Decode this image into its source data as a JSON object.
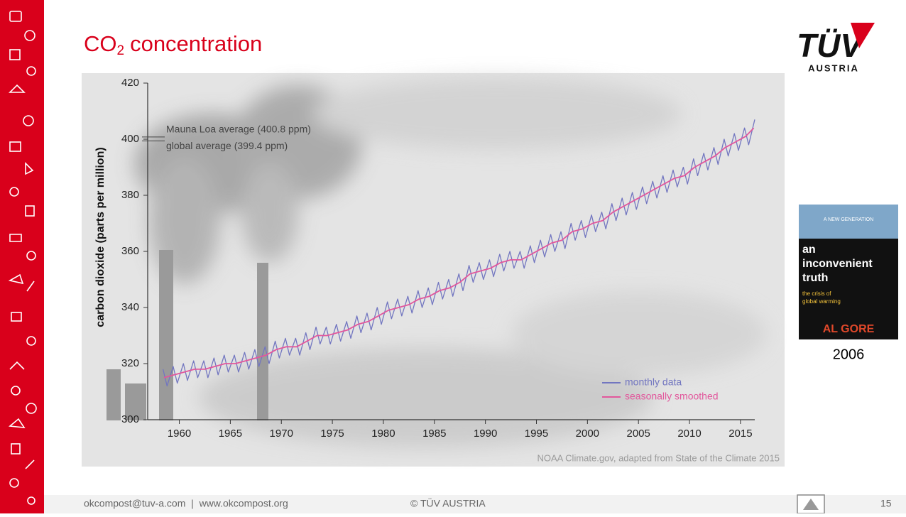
{
  "slide": {
    "title": {
      "main": "CO",
      "sub": "2",
      "rest": "concentration"
    },
    "logo": {
      "brand": "TÜV",
      "country": "AUSTRIA"
    },
    "book": {
      "tagline": "A NEW GENERATION",
      "title": [
        "an",
        "inconvenient",
        "truth"
      ],
      "subtitle": [
        "the crisis of",
        "global warming"
      ],
      "author": "AL GORE",
      "year": "2006"
    },
    "footer": {
      "contact": "okcompost@tuv-a.com  |  www.okcompost.org",
      "copyright": "© TÜV AUSTRIA",
      "page": "15"
    }
  },
  "chart_data": {
    "type": "line",
    "y_label": "carbon dioxide (parts per million)",
    "source": "NOAA Climate.gov, adapted from State of the Climate 2015",
    "annotations": [
      {
        "text": "Mauna Loa average (400.8 ppm)",
        "value": 400.8
      },
      {
        "text": "global average (399.4 ppm)",
        "value": 399.4
      }
    ],
    "xlim": [
      1956.9,
      2016.4
    ],
    "ylim": [
      300,
      420
    ],
    "xticks": [
      1960,
      1965,
      1970,
      1975,
      1980,
      1985,
      1990,
      1995,
      2000,
      2005,
      2010,
      2015
    ],
    "yticks": [
      300,
      320,
      340,
      360,
      380,
      400,
      420
    ],
    "grid": false,
    "legend": "lower right",
    "series": [
      {
        "name": "monthly data",
        "color": "#7276c0",
        "x": [
          1958.4,
          1958.8,
          1959.4,
          1959.8,
          1960.4,
          1960.8,
          1961.4,
          1961.8,
          1962.4,
          1962.8,
          1963.4,
          1963.8,
          1964.4,
          1964.8,
          1965.4,
          1965.8,
          1966.4,
          1966.8,
          1967.4,
          1967.8,
          1968.4,
          1968.8,
          1969.4,
          1969.8,
          1970.4,
          1970.8,
          1971.4,
          1971.8,
          1972.4,
          1972.8,
          1973.4,
          1973.8,
          1974.4,
          1974.8,
          1975.4,
          1975.8,
          1976.4,
          1976.8,
          1977.4,
          1977.8,
          1978.4,
          1978.8,
          1979.4,
          1979.8,
          1980.4,
          1980.8,
          1981.4,
          1981.8,
          1982.4,
          1982.8,
          1983.4,
          1983.8,
          1984.4,
          1984.8,
          1985.4,
          1985.8,
          1986.4,
          1986.8,
          1987.4,
          1987.8,
          1988.4,
          1988.8,
          1989.4,
          1989.8,
          1990.4,
          1990.8,
          1991.4,
          1991.8,
          1992.4,
          1992.8,
          1993.4,
          1993.8,
          1994.4,
          1994.8,
          1995.4,
          1995.8,
          1996.4,
          1996.8,
          1997.4,
          1997.8,
          1998.4,
          1998.8,
          1999.4,
          1999.8,
          2000.4,
          2000.8,
          2001.4,
          2001.8,
          2002.4,
          2002.8,
          2003.4,
          2003.8,
          2004.4,
          2004.8,
          2005.4,
          2005.8,
          2006.4,
          2006.8,
          2007.4,
          2007.8,
          2008.4,
          2008.8,
          2009.4,
          2009.8,
          2010.4,
          2010.8,
          2011.4,
          2011.8,
          2012.4,
          2012.8,
          2013.4,
          2013.8,
          2014.4,
          2014.8,
          2015.4,
          2015.8,
          2016.4
        ],
        "values": [
          318,
          312,
          319,
          313,
          320,
          314,
          321,
          315,
          321,
          315,
          322,
          316,
          323,
          317,
          323,
          317,
          324,
          318,
          325,
          319,
          326,
          320,
          328,
          322,
          329,
          323,
          329,
          323,
          331,
          325,
          333,
          327,
          333,
          327,
          334,
          328,
          335,
          329,
          337,
          331,
          338,
          332,
          340,
          334,
          342,
          336,
          343,
          337,
          344,
          338,
          346,
          340,
          347,
          341,
          349,
          343,
          350,
          344,
          352,
          346,
          355,
          349,
          356,
          350,
          357,
          351,
          359,
          353,
          360,
          354,
          360,
          354,
          362,
          356,
          364,
          358,
          366,
          360,
          367,
          361,
          370,
          364,
          371,
          365,
          373,
          367,
          374,
          368,
          377,
          371,
          379,
          373,
          381,
          375,
          383,
          377,
          385,
          379,
          387,
          381,
          389,
          383,
          390,
          384,
          393,
          387,
          395,
          389,
          397,
          391,
          400,
          394,
          402,
          396,
          404,
          398,
          407
        ]
      },
      {
        "name": "seasonally smoothed",
        "color": "#e2579c",
        "x": [
          1958.5,
          1959.5,
          1960.5,
          1961.5,
          1962.5,
          1963.5,
          1964.5,
          1965.5,
          1966.5,
          1967.5,
          1968.5,
          1969.5,
          1970.5,
          1971.5,
          1972.5,
          1973.5,
          1974.5,
          1975.5,
          1976.5,
          1977.5,
          1978.5,
          1979.5,
          1980.5,
          1981.5,
          1982.5,
          1983.5,
          1984.5,
          1985.5,
          1986.5,
          1987.5,
          1988.5,
          1989.5,
          1990.5,
          1991.5,
          1992.5,
          1993.5,
          1994.5,
          1995.5,
          1996.5,
          1997.5,
          1998.5,
          1999.5,
          2000.5,
          2001.5,
          2002.5,
          2003.5,
          2004.5,
          2005.5,
          2006.5,
          2007.5,
          2008.5,
          2009.5,
          2010.5,
          2011.5,
          2012.5,
          2013.5,
          2014.5,
          2015.5,
          2016.3
        ],
        "values": [
          315,
          316,
          317,
          318,
          318,
          319,
          320,
          320,
          321,
          322,
          323,
          325,
          326,
          326,
          328,
          330,
          330,
          331,
          332,
          334,
          335,
          337,
          339,
          340,
          341,
          343,
          344,
          346,
          347,
          349,
          352,
          353,
          354,
          356,
          357,
          357,
          359,
          361,
          363,
          364,
          367,
          368,
          370,
          371,
          374,
          376,
          378,
          380,
          382,
          384,
          386,
          387,
          390,
          392,
          394,
          397,
          399,
          401,
          404
        ]
      }
    ]
  }
}
